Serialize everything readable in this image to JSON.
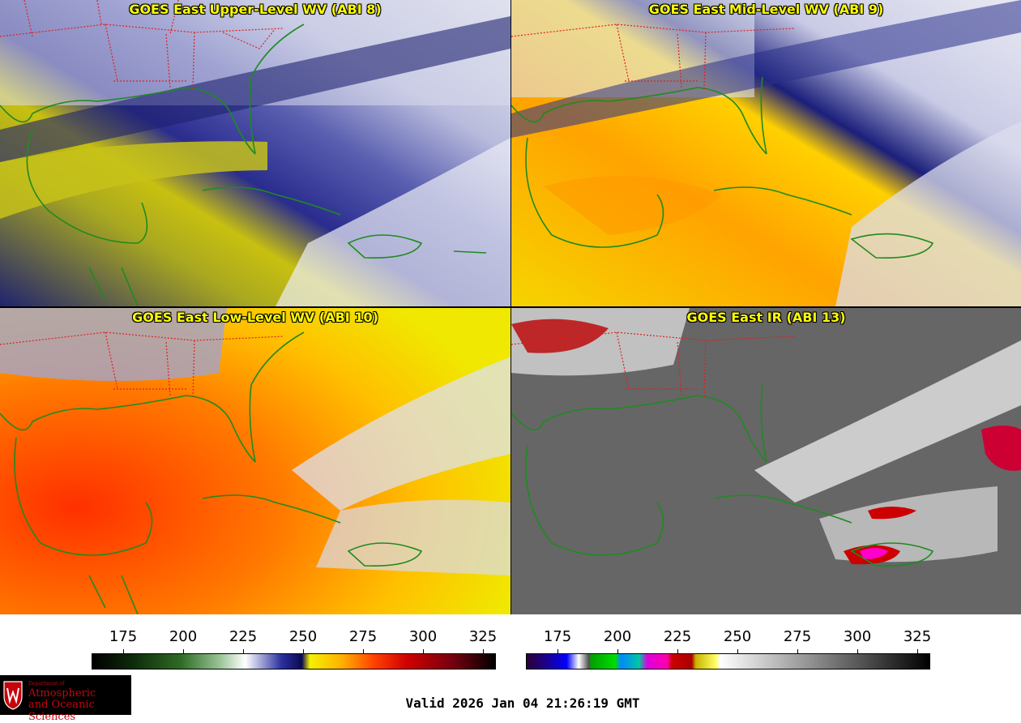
{
  "panels": [
    {
      "title": "GOES East Upper-Level WV (ABI 8)"
    },
    {
      "title": "GOES East Mid-Level WV (ABI 9)"
    },
    {
      "title": "GOES East Low-Level WV (ABI 10)"
    },
    {
      "title": "GOES East IR (ABI 13)"
    }
  ],
  "colorbars": {
    "wv": {
      "ticks": [
        "175",
        "200",
        "225",
        "250",
        "275",
        "300",
        "325"
      ]
    },
    "ir": {
      "ticks": [
        "175",
        "200",
        "225",
        "250",
        "275",
        "300",
        "325"
      ]
    }
  },
  "logo": {
    "dept": "Department of",
    "line1": "Atmospheric",
    "line2": "and Oceanic Sciences"
  },
  "valid_time": "Valid 2026 Jan 04 21:26:19 GMT",
  "colors": {
    "coastline": "#1f8a1f",
    "state_borders": "#e02020",
    "title_text": "#ffff00",
    "logo_red": "#c5050c"
  }
}
